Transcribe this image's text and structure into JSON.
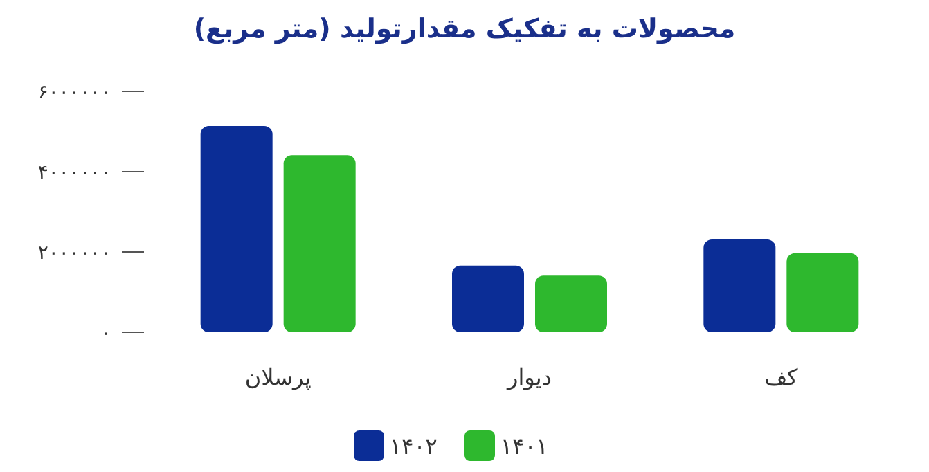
{
  "chart_data": {
    "type": "bar",
    "title": "محصولات به تفکیک مقدارتولید (متر مربع)",
    "categories": [
      "پرسلان",
      "دیوار",
      "کف"
    ],
    "series": [
      {
        "name": "۱۴۰۲",
        "color": "#0b2d96",
        "values": [
          5140000,
          1660000,
          2310000
        ]
      },
      {
        "name": "۱۴۰۱",
        "color": "#2eb82e",
        "values": [
          4410000,
          1410000,
          1970000
        ]
      }
    ],
    "ylim": [
      0,
      6000000
    ],
    "yticks": [
      {
        "value": 0,
        "label": "۰"
      },
      {
        "value": 2000000,
        "label": "۲۰۰۰۰۰۰"
      },
      {
        "value": 4000000,
        "label": "۴۰۰۰۰۰۰"
      },
      {
        "value": 6000000,
        "label": "۶۰۰۰۰۰۰"
      }
    ],
    "grid": false,
    "legend": "bottom"
  }
}
